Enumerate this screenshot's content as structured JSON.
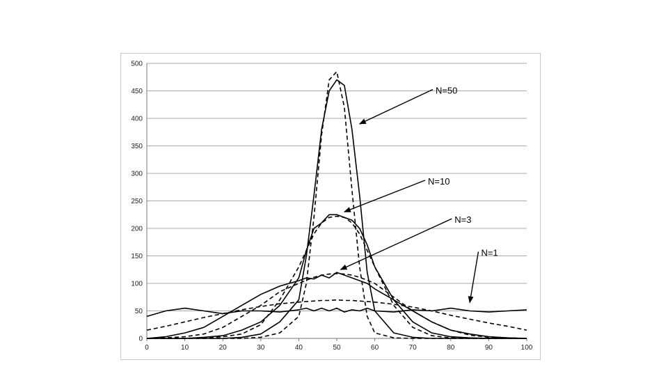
{
  "chart_data": {
    "type": "line",
    "title": "",
    "xlabel": "",
    "ylabel": "",
    "xlim": [
      0,
      100
    ],
    "ylim": [
      0,
      500
    ],
    "x_ticks": [
      0,
      10,
      20,
      30,
      40,
      50,
      60,
      70,
      80,
      90,
      100
    ],
    "y_ticks": [
      0,
      50,
      100,
      150,
      200,
      250,
      300,
      350,
      400,
      450,
      500
    ],
    "grid": "horizontal",
    "legend": "none",
    "x": [
      0,
      5,
      10,
      15,
      20,
      25,
      30,
      35,
      40,
      42,
      44,
      46,
      48,
      50,
      52,
      54,
      56,
      58,
      60,
      65,
      70,
      75,
      80,
      85,
      90,
      95,
      100
    ],
    "series": [
      {
        "style": "solid",
        "values": [
          40,
          50,
          55,
          50,
          45,
          50,
          50,
          48,
          52,
          55,
          50,
          55,
          50,
          55,
          48,
          52,
          50,
          55,
          50,
          48,
          52,
          50,
          55,
          50,
          48,
          50,
          52
        ]
      },
      {
        "style": "dashed",
        "values": [
          15,
          22,
          30,
          38,
          45,
          52,
          58,
          63,
          66,
          67,
          68,
          69,
          69,
          70,
          69,
          69,
          68,
          67,
          66,
          62,
          57,
          50,
          42,
          35,
          28,
          22,
          15
        ]
      },
      {
        "style": "solid",
        "values": [
          0,
          3,
          10,
          20,
          40,
          60,
          80,
          95,
          105,
          110,
          108,
          115,
          110,
          120,
          115,
          110,
          105,
          100,
          90,
          70,
          50,
          30,
          15,
          8,
          3,
          1,
          0
        ]
      },
      {
        "style": "dashed",
        "values": [
          0,
          1,
          3,
          8,
          20,
          40,
          60,
          85,
          100,
          106,
          111,
          115,
          117,
          118,
          117,
          115,
          111,
          106,
          100,
          75,
          50,
          30,
          15,
          6,
          2,
          1,
          0
        ]
      },
      {
        "style": "solid",
        "values": [
          0,
          0,
          0,
          2,
          5,
          15,
          30,
          60,
          110,
          160,
          200,
          210,
          225,
          225,
          220,
          215,
          200,
          170,
          130,
          70,
          30,
          10,
          3,
          1,
          0,
          0,
          0
        ]
      },
      {
        "style": "dashed",
        "values": [
          0,
          0,
          0,
          1,
          3,
          8,
          25,
          70,
          130,
          160,
          190,
          210,
          220,
          222,
          220,
          210,
          190,
          160,
          130,
          60,
          20,
          5,
          1,
          0,
          0,
          0,
          0
        ]
      },
      {
        "style": "solid",
        "values": [
          0,
          0,
          0,
          0,
          0,
          2,
          8,
          30,
          70,
          150,
          260,
          380,
          450,
          470,
          460,
          380,
          260,
          120,
          50,
          10,
          2,
          0,
          0,
          0,
          0,
          0,
          0
        ]
      },
      {
        "style": "dashed",
        "values": [
          0,
          0,
          0,
          0,
          0,
          0,
          2,
          10,
          40,
          100,
          220,
          370,
          470,
          485,
          420,
          270,
          130,
          40,
          10,
          1,
          0,
          0,
          0,
          0,
          0,
          0,
          0
        ]
      }
    ],
    "annotations": [
      {
        "text": "N=50",
        "x": 76,
        "y": 450,
        "arrow_to": [
          56,
          390
        ]
      },
      {
        "text": "N=10",
        "x": 74,
        "y": 285,
        "arrow_to": [
          52,
          230
        ]
      },
      {
        "text": "N=3",
        "x": 81,
        "y": 215,
        "arrow_to": [
          51,
          125
        ]
      },
      {
        "text": "N=1",
        "x": 88,
        "y": 155,
        "arrow_to": [
          85,
          65
        ]
      }
    ]
  }
}
